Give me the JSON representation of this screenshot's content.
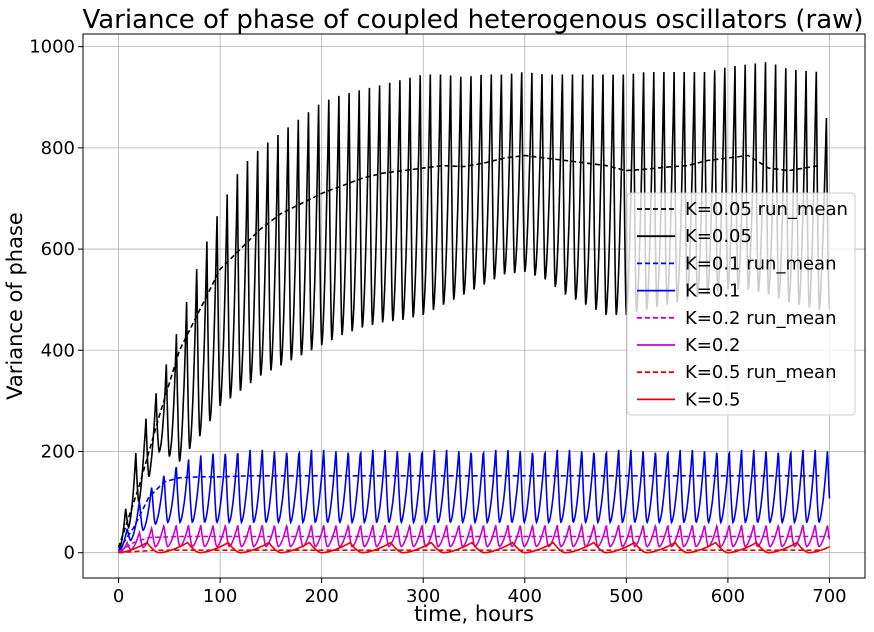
{
  "chart_data": {
    "type": "line",
    "title": "Variance of phase of coupled heterogenous oscillators (raw)",
    "xlabel": "time, hours",
    "ylabel": "Variance of phase",
    "xlim": [
      -35,
      735
    ],
    "ylim": [
      -50,
      1025
    ],
    "xticks": [
      0,
      100,
      200,
      300,
      400,
      500,
      600,
      700
    ],
    "yticks": [
      0,
      200,
      400,
      600,
      800,
      1000
    ],
    "grid": true,
    "legend_position": "center-right",
    "series": [
      {
        "name": "K=0.05 run_mean",
        "color": "#000000",
        "dash": "dashed",
        "x": [
          0,
          20,
          40,
          60,
          80,
          100,
          120,
          140,
          160,
          180,
          200,
          220,
          240,
          260,
          280,
          300,
          320,
          340,
          360,
          380,
          400,
          420,
          440,
          460,
          480,
          500,
          520,
          540,
          560,
          580,
          600,
          620,
          640,
          660,
          690
        ],
        "y": [
          10,
          130,
          270,
          400,
          480,
          560,
          600,
          640,
          670,
          690,
          710,
          725,
          740,
          750,
          755,
          760,
          765,
          763,
          770,
          780,
          785,
          780,
          775,
          770,
          765,
          755,
          758,
          762,
          765,
          775,
          780,
          785,
          760,
          755,
          765
        ]
      },
      {
        "name": "K=0.05",
        "color": "#000000",
        "dash": "solid",
        "period": 10,
        "x_end": 700,
        "peak_x": [
          0,
          20,
          40,
          60,
          80,
          100,
          120,
          140,
          160,
          180,
          200,
          220,
          240,
          260,
          280,
          300,
          320,
          340,
          360,
          380,
          400,
          420,
          440,
          460,
          480,
          500,
          520,
          540,
          560,
          580,
          600,
          620,
          640,
          660,
          690,
          700
        ],
        "peak_y": [
          10,
          230,
          330,
          450,
          580,
          680,
          760,
          800,
          830,
          860,
          890,
          905,
          915,
          925,
          935,
          945,
          945,
          940,
          945,
          945,
          950,
          945,
          945,
          945,
          945,
          945,
          950,
          950,
          950,
          950,
          960,
          965,
          970,
          955,
          950,
          820
        ],
        "trough_x": [
          0,
          20,
          40,
          60,
          80,
          100,
          120,
          140,
          160,
          180,
          200,
          220,
          240,
          260,
          280,
          300,
          320,
          340,
          360,
          380,
          400,
          420,
          440,
          460,
          480,
          500,
          520,
          540,
          560,
          580,
          600,
          620,
          640,
          660,
          690,
          700
        ],
        "trough_y": [
          0,
          100,
          200,
          180,
          230,
          290,
          320,
          350,
          370,
          390,
          410,
          430,
          445,
          455,
          460,
          470,
          490,
          510,
          530,
          550,
          555,
          540,
          510,
          490,
          470,
          470,
          480,
          490,
          500,
          510,
          520,
          520,
          510,
          495,
          480,
          480
        ]
      },
      {
        "name": "K=0.1 run_mean",
        "color": "#0000ee",
        "dash": "dashed",
        "x": [
          0,
          15,
          30,
          45,
          60,
          80,
          100,
          130,
          160,
          200,
          300,
          400,
          500,
          600,
          690
        ],
        "y": [
          5,
          50,
          110,
          140,
          148,
          150,
          150,
          152,
          152,
          152,
          152,
          152,
          152,
          152,
          152
        ]
      },
      {
        "name": "K=0.1",
        "color": "#0000ee",
        "dash": "solid",
        "period": 12.1,
        "x_end": 700,
        "peak_x": [
          0,
          20,
          40,
          60,
          90,
          120,
          700
        ],
        "peak_y": [
          10,
          100,
          150,
          180,
          200,
          205,
          205
        ],
        "trough_x": [
          0,
          20,
          40,
          60,
          90,
          120,
          700
        ],
        "trough_y": [
          0,
          40,
          60,
          60,
          60,
          60,
          60
        ]
      },
      {
        "name": "K=0.2 run_mean",
        "color": "#cc00cc",
        "dash": "dashed",
        "x": [
          0,
          15,
          30,
          60,
          700
        ],
        "y": [
          2,
          20,
          30,
          32,
          32
        ]
      },
      {
        "name": "K=0.2",
        "color": "#cc00cc",
        "dash": "solid",
        "period": 12.1,
        "x_end": 700,
        "peak_x": [
          0,
          20,
          40,
          700
        ],
        "peak_y": [
          5,
          40,
          55,
          55
        ],
        "trough_x": [
          0,
          20,
          40,
          700
        ],
        "trough_y": [
          0,
          10,
          12,
          12
        ]
      },
      {
        "name": "K=0.5 run_mean",
        "color": "#ee0000",
        "dash": "dashed",
        "x": [
          0,
          20,
          40,
          60,
          100,
          200,
          300,
          400,
          500,
          600,
          690
        ],
        "y": [
          0,
          3,
          5,
          5,
          5,
          5,
          5,
          5,
          5,
          5,
          5
        ]
      },
      {
        "name": "K=0.5",
        "color": "#ee0000",
        "dash": "solid",
        "period": 40,
        "x_end": 700,
        "peak_x": [
          0,
          700
        ],
        "peak_y": [
          20,
          20
        ],
        "trough_x": [
          0,
          700
        ],
        "trough_y": [
          0,
          0
        ]
      }
    ]
  }
}
